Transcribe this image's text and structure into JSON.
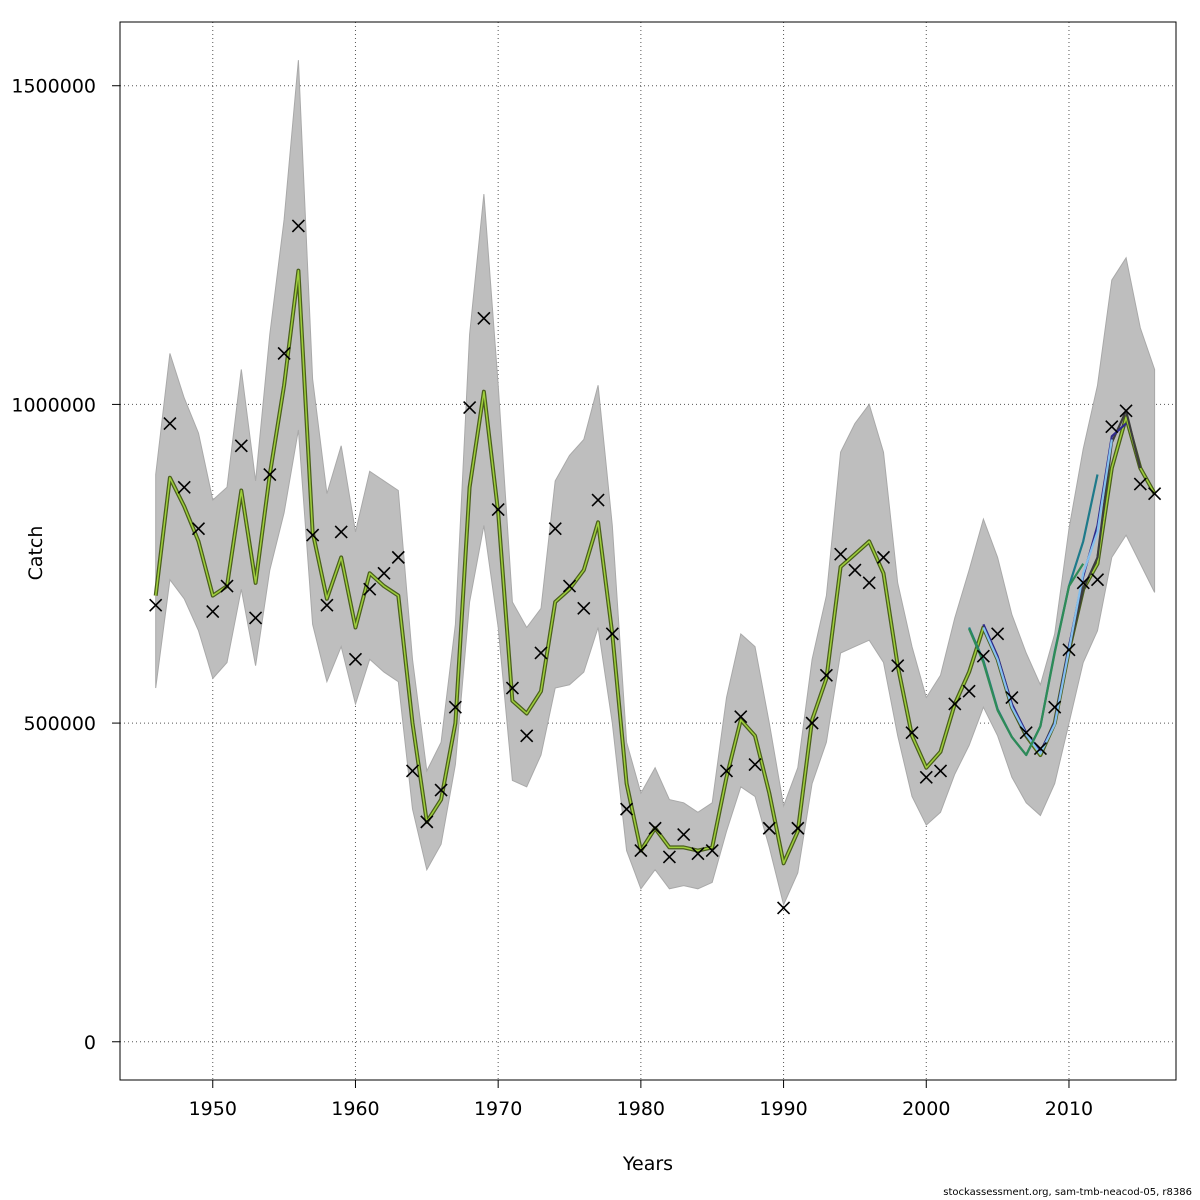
{
  "footer": "stockassessment.org, sam-tmb-neacod-05, r8386",
  "chart_data": {
    "type": "line",
    "xlabel": "Years",
    "ylabel": "Catch",
    "xlim": [
      1943.5,
      2017.5
    ],
    "ylim": [
      -60000,
      1600000
    ],
    "x_ticks": [
      1950,
      1960,
      1970,
      1980,
      1990,
      2000,
      2010
    ],
    "y_ticks": [
      0,
      500000,
      1000000,
      1500000
    ],
    "y_tick_labels": [
      "0",
      "500000",
      "1000000",
      "1500000"
    ],
    "grid": true,
    "colors": {
      "band": "#bebebe",
      "band_edge": "#a9a9a9",
      "fit": "#4a5f1c",
      "fit_highlight": "#9fcf3c",
      "observed_marker": "#000000",
      "retro_2015": "#3d3d3d",
      "retro_2014": "#2e2a8a",
      "retro_2013": "#86c0ec",
      "retro_2012": "#1e7a8a",
      "retro_2011": "#2e8b57"
    },
    "years": [
      1946,
      1947,
      1948,
      1949,
      1950,
      1951,
      1952,
      1953,
      1954,
      1955,
      1956,
      1957,
      1958,
      1959,
      1960,
      1961,
      1962,
      1963,
      1964,
      1965,
      1966,
      1967,
      1968,
      1969,
      1970,
      1971,
      1972,
      1973,
      1974,
      1975,
      1976,
      1977,
      1978,
      1979,
      1980,
      1981,
      1982,
      1983,
      1984,
      1985,
      1986,
      1987,
      1988,
      1989,
      1990,
      1991,
      1992,
      1993,
      1994,
      1995,
      1996,
      1997,
      1998,
      1999,
      2000,
      2001,
      2002,
      2003,
      2004,
      2005,
      2006,
      2007,
      2008,
      2009,
      2010,
      2011,
      2012,
      2013,
      2014,
      2015,
      2016
    ],
    "fitted": [
      700000,
      885000,
      840000,
      785000,
      700000,
      715000,
      865000,
      720000,
      890000,
      1030000,
      1210000,
      800000,
      695000,
      760000,
      650000,
      735000,
      715000,
      700000,
      500000,
      345000,
      380000,
      500000,
      870000,
      1020000,
      830000,
      535000,
      515000,
      550000,
      690000,
      710000,
      740000,
      815000,
      640000,
      405000,
      300000,
      335000,
      305000,
      305000,
      300000,
      305000,
      415000,
      505000,
      480000,
      390000,
      280000,
      330000,
      505000,
      570000,
      745000,
      765000,
      785000,
      735000,
      590000,
      480000,
      430000,
      455000,
      530000,
      580000,
      650000,
      600000,
      525000,
      480000,
      450000,
      500000,
      615000,
      710000,
      750000,
      900000,
      980000,
      900000,
      860000
    ],
    "upper": [
      890000,
      1080000,
      1010000,
      955000,
      850000,
      870000,
      1055000,
      880000,
      1110000,
      1290000,
      1540000,
      1040000,
      860000,
      935000,
      800000,
      895000,
      880000,
      865000,
      600000,
      425000,
      470000,
      655000,
      1110000,
      1330000,
      1030000,
      690000,
      650000,
      680000,
      880000,
      920000,
      945000,
      1030000,
      810000,
      470000,
      390000,
      430000,
      380000,
      375000,
      360000,
      375000,
      540000,
      640000,
      620000,
      500000,
      370000,
      430000,
      600000,
      700000,
      925000,
      970000,
      1000000,
      925000,
      720000,
      620000,
      540000,
      575000,
      665000,
      740000,
      820000,
      760000,
      670000,
      610000,
      560000,
      640000,
      805000,
      930000,
      1030000,
      1195000,
      1230000,
      1120000,
      1055000
    ],
    "lower": [
      555000,
      725000,
      695000,
      645000,
      570000,
      595000,
      710000,
      590000,
      740000,
      830000,
      960000,
      655000,
      565000,
      620000,
      530000,
      600000,
      580000,
      565000,
      365000,
      270000,
      310000,
      435000,
      690000,
      810000,
      650000,
      410000,
      400000,
      450000,
      555000,
      560000,
      580000,
      650000,
      500000,
      300000,
      240000,
      270000,
      240000,
      245000,
      240000,
      250000,
      330000,
      400000,
      385000,
      305000,
      215000,
      265000,
      405000,
      470000,
      610000,
      620000,
      630000,
      595000,
      480000,
      385000,
      340000,
      360000,
      420000,
      465000,
      525000,
      480000,
      415000,
      375000,
      355000,
      405000,
      500000,
      595000,
      645000,
      760000,
      795000,
      750000,
      705000
    ],
    "observed": [
      685000,
      970000,
      870000,
      805000,
      675000,
      715000,
      935000,
      665000,
      890000,
      1080000,
      1280000,
      795000,
      685000,
      800000,
      600000,
      710000,
      735000,
      760000,
      425000,
      345000,
      395000,
      525000,
      995000,
      1135000,
      835000,
      555000,
      480000,
      610000,
      805000,
      715000,
      680000,
      850000,
      640000,
      365000,
      300000,
      335000,
      290000,
      325000,
      295000,
      300000,
      425000,
      510000,
      435000,
      335000,
      210000,
      335000,
      500000,
      575000,
      765000,
      740000,
      720000,
      760000,
      590000,
      485000,
      415000,
      425000,
      530000,
      550000,
      605000,
      640000,
      540000,
      485000,
      460000,
      525000,
      615000,
      720000,
      725000,
      965000,
      990000,
      875000,
      860000
    ],
    "retro_series": [
      {
        "end_year": 2015,
        "color_key": "retro_2015",
        "values": [
          650000,
          600000,
          525000,
          480000,
          455000,
          500000,
          615000,
          710000,
          760000,
          940000,
          990000,
          900000
        ]
      },
      {
        "end_year": 2014,
        "color_key": "retro_2014",
        "values": [
          655000,
          605000,
          530000,
          485000,
          455000,
          500000,
          620000,
          730000,
          810000,
          950000,
          970000
        ]
      },
      {
        "end_year": 2013,
        "color_key": "retro_2013",
        "values": [
          650000,
          600000,
          525000,
          482000,
          452000,
          498000,
          615000,
          735000,
          800000,
          945000
        ]
      },
      {
        "end_year": 2012,
        "color_key": "retro_2012",
        "values": [
          650000,
          598000,
          522000,
          478000,
          450000,
          495000,
          612000,
          715000,
          785000,
          890000
        ]
      },
      {
        "end_year": 2011,
        "color_key": "retro_2011",
        "values": [
          648000,
          595000,
          520000,
          478000,
          450000,
          495000,
          610000,
          715000,
          750000
        ]
      }
    ]
  }
}
